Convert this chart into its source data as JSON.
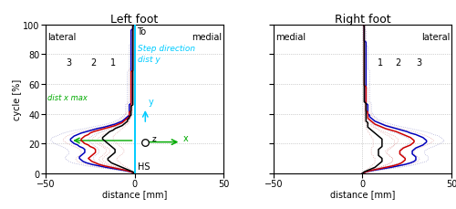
{
  "left_title": "Left foot",
  "right_title": "Right foot",
  "xlabel": "distance [mm]",
  "ylabel": "cycle [%]",
  "xlim": [
    -50,
    50
  ],
  "ylim": [
    0,
    100
  ],
  "xticks": [
    -50,
    0,
    50
  ],
  "yticks": [
    0,
    20,
    40,
    60,
    80,
    100
  ],
  "color_black": "#000000",
  "color_red": "#cc0000",
  "color_blue": "#0000bb",
  "color_cyan": "#00ccff",
  "color_green": "#00aa00",
  "color_sd_red": "#dd9999",
  "color_sd_blue": "#9999cc",
  "cycle": [
    0,
    1,
    2,
    3,
    4,
    5,
    6,
    7,
    8,
    9,
    10,
    11,
    12,
    13,
    14,
    15,
    16,
    17,
    18,
    19,
    20,
    21,
    22,
    23,
    24,
    25,
    26,
    27,
    28,
    29,
    30,
    31,
    32,
    33,
    34,
    35,
    36,
    37,
    38,
    39,
    40,
    41,
    42,
    43,
    44,
    45,
    46,
    47,
    48,
    49,
    50,
    51,
    52,
    53,
    54,
    55,
    56,
    57,
    58,
    59,
    60,
    61,
    62,
    63,
    64,
    65,
    66,
    67,
    68,
    69,
    70,
    71,
    72,
    73,
    74,
    75,
    76,
    77,
    78,
    79,
    80,
    81,
    82,
    83,
    84,
    85,
    86,
    87,
    88,
    89,
    90,
    91,
    92,
    93,
    94,
    95,
    96,
    97,
    98,
    99,
    100
  ],
  "left_black": [
    0,
    -1,
    -3,
    -5,
    -7,
    -9,
    -11,
    -13,
    -14,
    -15,
    -15,
    -14,
    -13,
    -12,
    -11,
    -11,
    -11,
    -12,
    -13,
    -14,
    -15,
    -16,
    -17,
    -18,
    -18,
    -17,
    -16,
    -15,
    -14,
    -12,
    -11,
    -9,
    -7,
    -6,
    -5,
    -4,
    -4,
    -3,
    -3,
    -2,
    -2,
    -2,
    -2,
    -2,
    -2,
    -2,
    -1,
    -1,
    -1,
    -1,
    -1,
    -1,
    -1,
    -1,
    -1,
    -1,
    -1,
    -1,
    -1,
    -1,
    -1,
    -1,
    -1,
    -1,
    -1,
    -1,
    -1,
    -1,
    -1,
    -1,
    -1,
    -1,
    -1,
    -1,
    -1,
    -1,
    -1,
    -1,
    -1,
    -1,
    -1,
    -1,
    -1,
    -1,
    -1,
    -1,
    -1,
    -1,
    -1,
    -1,
    -1,
    -1,
    -1,
    -1,
    -1,
    -1,
    -1,
    -1,
    -1,
    -1,
    0
  ],
  "left_red": [
    0,
    -2,
    -5,
    -9,
    -13,
    -17,
    -20,
    -22,
    -24,
    -25,
    -26,
    -25,
    -24,
    -23,
    -22,
    -22,
    -22,
    -23,
    -25,
    -26,
    -28,
    -29,
    -30,
    -30,
    -29,
    -28,
    -26,
    -25,
    -23,
    -20,
    -17,
    -14,
    -11,
    -9,
    -7,
    -6,
    -5,
    -4,
    -3,
    -3,
    -3,
    -3,
    -2,
    -2,
    -2,
    -2,
    -2,
    -2,
    -2,
    -2,
    -2,
    -2,
    -2,
    -2,
    -2,
    -2,
    -2,
    -2,
    -2,
    -2,
    -2,
    -2,
    -2,
    -2,
    -2,
    -2,
    -2,
    -2,
    -2,
    -1,
    -1,
    -1,
    -1,
    -1,
    -1,
    -1,
    -1,
    -1,
    -1,
    -1,
    -1,
    -1,
    -1,
    -1,
    -1,
    -1,
    -1,
    -1,
    -1,
    -1,
    -1,
    -1,
    -1,
    -1,
    -1,
    -1,
    -1,
    -1,
    -1,
    -1,
    0
  ],
  "left_blue": [
    0,
    -2,
    -6,
    -11,
    -16,
    -20,
    -24,
    -27,
    -29,
    -30,
    -31,
    -31,
    -30,
    -29,
    -28,
    -28,
    -28,
    -29,
    -31,
    -32,
    -34,
    -35,
    -36,
    -36,
    -35,
    -34,
    -32,
    -30,
    -27,
    -24,
    -21,
    -17,
    -14,
    -11,
    -9,
    -7,
    -6,
    -5,
    -4,
    -3,
    -3,
    -3,
    -3,
    -3,
    -3,
    -3,
    -3,
    -2,
    -2,
    -2,
    -2,
    -2,
    -2,
    -2,
    -2,
    -2,
    -2,
    -2,
    -2,
    -2,
    -2,
    -2,
    -2,
    -2,
    -2,
    -2,
    -2,
    -2,
    -2,
    -2,
    -2,
    -2,
    -2,
    -2,
    -2,
    -2,
    -2,
    -2,
    -2,
    -2,
    -2,
    -2,
    -2,
    -2,
    -2,
    -2,
    -2,
    -2,
    -2,
    -2,
    -2,
    -2,
    -2,
    -2,
    -2,
    -2,
    -2,
    -1,
    -1,
    -1,
    0
  ],
  "left_black_sd_outer": [
    0,
    -2,
    -5,
    -8,
    -10,
    -13,
    -16,
    -18,
    -19,
    -20,
    -20,
    -19,
    -18,
    -17,
    -16,
    -16,
    -16,
    -17,
    -18,
    -20,
    -21,
    -22,
    -23,
    -24,
    -23,
    -22,
    -21,
    -20,
    -18,
    -16,
    -14,
    -12,
    -10,
    -8,
    -7,
    -6,
    -5,
    -5,
    -4,
    -3,
    -3,
    -3,
    -3,
    -3,
    -3,
    -3,
    -2,
    -2,
    -2,
    -2,
    -2,
    -2,
    -2,
    -2,
    -2,
    -2,
    -2,
    -2,
    -2,
    -2,
    -2,
    -2,
    -2,
    -2,
    -2,
    -2,
    -2,
    -2,
    -2,
    -1,
    -1,
    -1,
    -1,
    -1,
    -1,
    -1,
    -1,
    -1,
    -1,
    -1,
    -1,
    -1,
    -1,
    -1,
    -1,
    -1,
    -1,
    -1,
    -1,
    -1,
    -1,
    -1,
    -1,
    -1,
    -1,
    -1,
    -1,
    -1,
    -1,
    -1,
    0
  ],
  "left_black_sd_inner": [
    0,
    -1,
    -2,
    -3,
    -4,
    -6,
    -7,
    -8,
    -9,
    -10,
    -10,
    -9,
    -8,
    -7,
    -6,
    -6,
    -6,
    -7,
    -8,
    -9,
    -10,
    -11,
    -12,
    -12,
    -12,
    -12,
    -11,
    -10,
    -9,
    -8,
    -7,
    -6,
    -5,
    -4,
    -3,
    -3,
    -3,
    -2,
    -2,
    -2,
    -2,
    -1,
    -1,
    -1,
    -1,
    -1,
    -1,
    -1,
    -1,
    -1,
    -1,
    -1,
    -1,
    -1,
    -1,
    -1,
    -1,
    -1,
    -1,
    -1,
    -1,
    -1,
    -1,
    -1,
    -1,
    -1,
    -1,
    -1,
    -1,
    -1,
    -1,
    -1,
    -1,
    -1,
    -1,
    -1,
    -1,
    -1,
    -1,
    -1,
    -1,
    -1,
    -1,
    -1,
    -1,
    -1,
    -1,
    -1,
    -1,
    -1,
    -1,
    -1,
    -1,
    -1,
    -1,
    -1,
    -1,
    -1,
    -1,
    -1,
    0
  ],
  "left_red_sd_outer": [
    0,
    -3,
    -8,
    -14,
    -19,
    -23,
    -27,
    -30,
    -32,
    -33,
    -33,
    -32,
    -31,
    -30,
    -30,
    -30,
    -31,
    -32,
    -34,
    -36,
    -38,
    -39,
    -40,
    -40,
    -39,
    -38,
    -36,
    -34,
    -31,
    -27,
    -23,
    -19,
    -16,
    -13,
    -11,
    -9,
    -8,
    -7,
    -6,
    -5,
    -5,
    -4,
    -4,
    -4,
    -4,
    -4,
    -4,
    -4,
    -3,
    -3,
    -3,
    -3,
    -3,
    -3,
    -3,
    -3,
    -3,
    -3,
    -3,
    -3,
    -3,
    -3,
    -3,
    -3,
    -3,
    -3,
    -3,
    -3,
    -3,
    -3,
    -3,
    -2,
    -2,
    -2,
    -2,
    -2,
    -2,
    -2,
    -2,
    -2,
    -2,
    -2,
    -2,
    -2,
    -2,
    -2,
    -2,
    -2,
    -2,
    -2,
    -2,
    -2,
    -2,
    -1,
    -1,
    -1,
    -1,
    -1,
    -1,
    -1,
    0
  ],
  "left_red_sd_inner": [
    0,
    -1,
    -3,
    -6,
    -9,
    -12,
    -14,
    -16,
    -17,
    -18,
    -18,
    -17,
    -16,
    -15,
    -14,
    -14,
    -14,
    -15,
    -17,
    -18,
    -19,
    -20,
    -21,
    -21,
    -20,
    -19,
    -18,
    -16,
    -15,
    -13,
    -11,
    -9,
    -7,
    -5,
    -4,
    -3,
    -3,
    -3,
    -2,
    -2,
    -2,
    -2,
    -2,
    -2,
    -2,
    -1,
    -1,
    -1,
    -1,
    -1,
    -1,
    -1,
    -1,
    -1,
    -1,
    -1,
    -1,
    -1,
    -1,
    -1,
    -1,
    -1,
    -1,
    -1,
    -1,
    -1,
    -1,
    -1,
    -1,
    -1,
    -1,
    -1,
    -1,
    -1,
    -1,
    -1,
    -1,
    -1,
    -1,
    -1,
    -1,
    -1,
    -1,
    -1,
    -1,
    -1,
    -1,
    -1,
    -1,
    -1,
    -1,
    -1,
    -1,
    -1,
    -1,
    -1,
    -1,
    -1,
    -1,
    -1,
    0
  ],
  "left_blue_sd_outer": [
    0,
    -3,
    -9,
    -15,
    -21,
    -27,
    -31,
    -35,
    -37,
    -38,
    -39,
    -39,
    -38,
    -37,
    -37,
    -37,
    -38,
    -39,
    -41,
    -43,
    -45,
    -46,
    -47,
    -47,
    -46,
    -44,
    -42,
    -40,
    -37,
    -33,
    -28,
    -24,
    -20,
    -16,
    -13,
    -11,
    -9,
    -8,
    -7,
    -6,
    -5,
    -5,
    -5,
    -5,
    -5,
    -5,
    -5,
    -4,
    -4,
    -4,
    -4,
    -4,
    -4,
    -4,
    -4,
    -4,
    -4,
    -4,
    -4,
    -4,
    -4,
    -4,
    -4,
    -4,
    -4,
    -4,
    -4,
    -4,
    -4,
    -3,
    -3,
    -3,
    -3,
    -3,
    -3,
    -3,
    -3,
    -3,
    -3,
    -3,
    -3,
    -3,
    -3,
    -3,
    -3,
    -3,
    -3,
    -2,
    -2,
    -2,
    -2,
    -2,
    -2,
    -2,
    -2,
    -2,
    -2,
    -1,
    -1,
    -1,
    0
  ],
  "left_blue_sd_inner": [
    0,
    -1,
    -4,
    -7,
    -11,
    -15,
    -18,
    -21,
    -22,
    -23,
    -23,
    -23,
    -22,
    -21,
    -20,
    -20,
    -20,
    -21,
    -22,
    -23,
    -24,
    -25,
    -26,
    -26,
    -25,
    -24,
    -23,
    -21,
    -18,
    -16,
    -14,
    -11,
    -9,
    -7,
    -5,
    -4,
    -4,
    -3,
    -2,
    -2,
    -2,
    -2,
    -2,
    -2,
    -2,
    -2,
    -2,
    -1,
    -1,
    -1,
    -1,
    -1,
    -1,
    -1,
    -1,
    -1,
    -1,
    -1,
    -1,
    -1,
    -1,
    -1,
    -1,
    -1,
    -1,
    -1,
    -1,
    -1,
    -1,
    -1,
    -1,
    -1,
    -1,
    -1,
    -1,
    -1,
    -1,
    -1,
    -1,
    -1,
    -1,
    -1,
    -1,
    -1,
    -1,
    -1,
    -1,
    -1,
    -1,
    -1,
    -1,
    -1,
    -1,
    -1,
    -1,
    -1,
    -1,
    -1,
    -1,
    -1,
    0
  ],
  "right_black": [
    0,
    1,
    3,
    5,
    7,
    8,
    9,
    10,
    11,
    11,
    11,
    10,
    9,
    9,
    9,
    9,
    9,
    10,
    11,
    11,
    11,
    11,
    11,
    11,
    10,
    9,
    8,
    7,
    6,
    5,
    4,
    3,
    3,
    3,
    3,
    2,
    2,
    2,
    2,
    2,
    2,
    2,
    2,
    2,
    2,
    2,
    2,
    2,
    1,
    1,
    1,
    1,
    1,
    1,
    1,
    1,
    1,
    1,
    1,
    1,
    1,
    1,
    1,
    1,
    1,
    1,
    1,
    1,
    1,
    1,
    1,
    1,
    1,
    1,
    1,
    1,
    1,
    1,
    1,
    1,
    1,
    1,
    1,
    1,
    1,
    1,
    1,
    1,
    1,
    1,
    1,
    1,
    1,
    1,
    1,
    1,
    1,
    1,
    1,
    1,
    0
  ],
  "right_red": [
    0,
    2,
    5,
    9,
    13,
    17,
    20,
    22,
    23,
    24,
    24,
    23,
    22,
    21,
    21,
    21,
    22,
    23,
    25,
    27,
    28,
    29,
    29,
    28,
    27,
    25,
    23,
    21,
    19,
    16,
    13,
    11,
    9,
    7,
    6,
    5,
    4,
    3,
    3,
    3,
    3,
    3,
    2,
    2,
    2,
    2,
    2,
    2,
    2,
    2,
    2,
    2,
    2,
    2,
    2,
    2,
    2,
    2,
    2,
    1,
    1,
    1,
    1,
    1,
    1,
    1,
    1,
    1,
    1,
    1,
    1,
    1,
    1,
    1,
    1,
    1,
    1,
    1,
    1,
    1,
    1,
    1,
    1,
    1,
    1,
    1,
    1,
    1,
    1,
    1,
    1,
    1,
    1,
    1,
    1,
    1,
    1,
    1,
    1,
    1,
    0
  ],
  "right_blue": [
    0,
    2,
    6,
    11,
    16,
    20,
    24,
    27,
    29,
    30,
    30,
    30,
    29,
    28,
    28,
    28,
    29,
    30,
    32,
    34,
    35,
    36,
    36,
    35,
    34,
    32,
    30,
    27,
    25,
    22,
    19,
    16,
    13,
    11,
    9,
    7,
    6,
    5,
    4,
    4,
    3,
    3,
    3,
    3,
    3,
    3,
    3,
    2,
    2,
    2,
    2,
    2,
    2,
    2,
    2,
    2,
    2,
    2,
    2,
    2,
    2,
    2,
    2,
    2,
    2,
    2,
    2,
    2,
    2,
    2,
    2,
    2,
    2,
    2,
    2,
    2,
    2,
    2,
    2,
    2,
    2,
    2,
    2,
    2,
    2,
    2,
    2,
    2,
    2,
    1,
    1,
    1,
    1,
    1,
    1,
    1,
    1,
    1,
    1,
    1,
    0
  ],
  "right_black_sd_outer": [
    0,
    2,
    5,
    8,
    10,
    12,
    14,
    16,
    17,
    17,
    17,
    16,
    15,
    14,
    14,
    14,
    15,
    16,
    17,
    18,
    18,
    18,
    18,
    17,
    16,
    15,
    13,
    12,
    10,
    9,
    8,
    7,
    6,
    5,
    5,
    4,
    4,
    4,
    3,
    3,
    3,
    3,
    3,
    3,
    3,
    3,
    2,
    2,
    2,
    2,
    2,
    2,
    2,
    2,
    2,
    2,
    2,
    2,
    2,
    2,
    2,
    2,
    2,
    2,
    2,
    2,
    2,
    2,
    2,
    2,
    2,
    2,
    2,
    2,
    2,
    2,
    2,
    2,
    2,
    2,
    2,
    1,
    1,
    1,
    1,
    1,
    1,
    1,
    1,
    1,
    1,
    1,
    1,
    1,
    1,
    1,
    1,
    1,
    1,
    1,
    0
  ],
  "right_black_sd_inner": [
    0,
    1,
    2,
    3,
    4,
    5,
    6,
    7,
    7,
    7,
    7,
    6,
    6,
    5,
    5,
    5,
    5,
    5,
    6,
    6,
    6,
    6,
    6,
    6,
    5,
    5,
    4,
    4,
    3,
    3,
    2,
    2,
    2,
    2,
    2,
    1,
    1,
    1,
    1,
    1,
    1,
    1,
    1,
    1,
    1,
    1,
    1,
    1,
    1,
    1,
    1,
    1,
    1,
    1,
    1,
    1,
    1,
    1,
    1,
    1,
    1,
    1,
    1,
    1,
    1,
    1,
    1,
    1,
    1,
    1,
    1,
    1,
    1,
    1,
    1,
    1,
    1,
    1,
    1,
    1,
    1,
    1,
    1,
    1,
    1,
    1,
    1,
    1,
    1,
    1,
    1,
    1,
    1,
    1,
    1,
    1,
    1,
    1,
    1,
    1,
    0
  ],
  "right_red_sd_outer": [
    0,
    3,
    8,
    13,
    18,
    22,
    26,
    29,
    31,
    32,
    32,
    31,
    30,
    29,
    29,
    29,
    30,
    32,
    34,
    36,
    38,
    39,
    40,
    39,
    38,
    36,
    34,
    31,
    29,
    25,
    22,
    18,
    15,
    12,
    10,
    9,
    8,
    7,
    6,
    5,
    5,
    4,
    4,
    4,
    4,
    4,
    4,
    4,
    3,
    3,
    3,
    3,
    3,
    3,
    3,
    3,
    3,
    3,
    2,
    2,
    2,
    2,
    2,
    2,
    2,
    2,
    2,
    2,
    2,
    2,
    2,
    2,
    2,
    2,
    2,
    2,
    2,
    2,
    2,
    2,
    2,
    2,
    2,
    2,
    2,
    2,
    2,
    2,
    1,
    1,
    1,
    1,
    1,
    1,
    1,
    1,
    1,
    1,
    1,
    1,
    0
  ],
  "right_red_sd_inner": [
    0,
    1,
    3,
    6,
    9,
    12,
    14,
    16,
    17,
    17,
    17,
    16,
    15,
    14,
    13,
    13,
    14,
    15,
    17,
    18,
    19,
    20,
    20,
    20,
    19,
    18,
    16,
    14,
    12,
    10,
    8,
    6,
    5,
    4,
    3,
    3,
    3,
    2,
    2,
    2,
    2,
    2,
    2,
    2,
    2,
    2,
    2,
    2,
    1,
    1,
    1,
    1,
    1,
    1,
    1,
    1,
    1,
    1,
    1,
    1,
    1,
    1,
    1,
    1,
    1,
    1,
    1,
    1,
    1,
    1,
    1,
    1,
    1,
    1,
    1,
    1,
    1,
    1,
    1,
    1,
    1,
    1,
    1,
    1,
    1,
    1,
    1,
    1,
    1,
    1,
    1,
    1,
    1,
    1,
    1,
    1,
    1,
    1,
    1,
    1,
    0
  ],
  "right_blue_sd_outer": [
    0,
    3,
    9,
    15,
    21,
    26,
    30,
    33,
    36,
    37,
    37,
    37,
    36,
    35,
    35,
    35,
    36,
    38,
    40,
    42,
    44,
    45,
    46,
    45,
    44,
    43,
    40,
    38,
    35,
    31,
    27,
    23,
    19,
    16,
    13,
    11,
    9,
    8,
    7,
    6,
    6,
    5,
    5,
    5,
    5,
    5,
    5,
    5,
    4,
    4,
    4,
    4,
    4,
    4,
    4,
    4,
    4,
    4,
    4,
    4,
    4,
    4,
    4,
    4,
    4,
    4,
    4,
    4,
    4,
    4,
    3,
    3,
    3,
    3,
    3,
    3,
    3,
    3,
    3,
    3,
    3,
    3,
    3,
    3,
    3,
    3,
    2,
    2,
    2,
    2,
    2,
    2,
    2,
    2,
    2,
    2,
    2,
    1,
    1,
    1,
    0
  ],
  "right_blue_sd_inner": [
    0,
    1,
    4,
    7,
    11,
    15,
    18,
    21,
    23,
    24,
    24,
    24,
    23,
    22,
    21,
    21,
    21,
    22,
    24,
    25,
    26,
    27,
    27,
    26,
    25,
    23,
    21,
    19,
    16,
    14,
    12,
    9,
    7,
    6,
    5,
    4,
    4,
    3,
    2,
    2,
    2,
    2,
    2,
    2,
    2,
    2,
    2,
    2,
    2,
    1,
    1,
    1,
    1,
    1,
    1,
    1,
    1,
    1,
    1,
    1,
    1,
    1,
    1,
    1,
    1,
    1,
    1,
    1,
    1,
    1,
    1,
    1,
    1,
    1,
    1,
    1,
    1,
    1,
    1,
    1,
    1,
    1,
    1,
    1,
    1,
    1,
    1,
    1,
    1,
    1,
    1,
    1,
    1,
    1,
    1,
    1,
    1,
    1,
    1,
    1,
    0
  ]
}
